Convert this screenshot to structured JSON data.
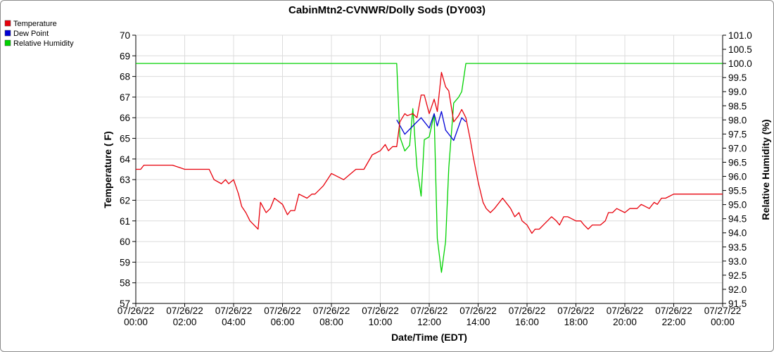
{
  "chart_data": {
    "type": "line",
    "title": "CabinMtn2-CVNWR/Dolly Sods (DY003)",
    "xlabel": "Date/Time (EDT)",
    "ylabel": "Temperature ( F)",
    "y2label": "Relative Humidity (%)",
    "ylim": [
      57,
      70
    ],
    "y2lim": [
      91.5,
      101.0
    ],
    "xlim": [
      0,
      24
    ],
    "grid": true,
    "legend_position": "top-left",
    "x_ticks": [
      {
        "x": 0,
        "line1": "07/26/22",
        "line2": "00:00"
      },
      {
        "x": 2,
        "line1": "07/26/22",
        "line2": "02:00"
      },
      {
        "x": 4,
        "line1": "07/26/22",
        "line2": "04:00"
      },
      {
        "x": 6,
        "line1": "07/26/22",
        "line2": "06:00"
      },
      {
        "x": 8,
        "line1": "07/26/22",
        "line2": "08:00"
      },
      {
        "x": 10,
        "line1": "07/26/22",
        "line2": "10:00"
      },
      {
        "x": 12,
        "line1": "07/26/22",
        "line2": "12:00"
      },
      {
        "x": 14,
        "line1": "07/26/22",
        "line2": "14:00"
      },
      {
        "x": 16,
        "line1": "07/26/22",
        "line2": "16:00"
      },
      {
        "x": 18,
        "line1": "07/26/22",
        "line2": "18:00"
      },
      {
        "x": 20,
        "line1": "07/26/22",
        "line2": "20:00"
      },
      {
        "x": 22,
        "line1": "07/26/22",
        "line2": "22:00"
      },
      {
        "x": 24,
        "line1": "07/27/22",
        "line2": "00:00"
      }
    ],
    "y_ticks": [
      "57",
      "58",
      "59",
      "60",
      "61",
      "62",
      "63",
      "64",
      "65",
      "66",
      "67",
      "68",
      "69",
      "70"
    ],
    "y2_ticks": [
      "91.5",
      "92.0",
      "92.5",
      "93.0",
      "93.5",
      "94.0",
      "94.5",
      "95.0",
      "95.5",
      "96.0",
      "96.5",
      "97.0",
      "97.5",
      "98.0",
      "98.5",
      "99.0",
      "99.5",
      "100.0",
      "100.5",
      "101.0"
    ],
    "series": [
      {
        "name": "Temperature",
        "color": "#e8000b",
        "axis": "left",
        "x": [
          0,
          0.2,
          0.33,
          0.5,
          1,
          1.5,
          2,
          3,
          3.2,
          3.5,
          3.67,
          3.8,
          4,
          4.2,
          4.33,
          4.5,
          4.67,
          5,
          5.1,
          5.33,
          5.5,
          5.67,
          6,
          6.2,
          6.33,
          6.5,
          6.67,
          7,
          7.2,
          7.33,
          7.5,
          7.67,
          8,
          8.5,
          9,
          9.33,
          9.67,
          10,
          10.2,
          10.33,
          10.5,
          10.67,
          10.8,
          11,
          11.1,
          11.33,
          11.5,
          11.67,
          11.8,
          12,
          12.2,
          12.33,
          12.5,
          12.67,
          12.8,
          13,
          13.2,
          13.33,
          13.5,
          13.67,
          13.8,
          14,
          14.2,
          14.33,
          14.5,
          14.67,
          15,
          15.2,
          15.33,
          15.5,
          15.67,
          15.8,
          16,
          16.2,
          16.33,
          16.5,
          16.67,
          17,
          17.2,
          17.33,
          17.5,
          17.67,
          18,
          18.2,
          18.33,
          18.5,
          18.67,
          19,
          19.2,
          19.33,
          19.5,
          19.67,
          20,
          20.2,
          20.33,
          20.5,
          20.67,
          21,
          21.2,
          21.33,
          21.5,
          21.67,
          22,
          22.5,
          23,
          24
        ],
        "values": [
          63.5,
          63.5,
          63.7,
          63.7,
          63.7,
          63.7,
          63.5,
          63.5,
          63.0,
          62.8,
          63.0,
          62.8,
          63.0,
          62.3,
          61.7,
          61.4,
          61.0,
          60.6,
          61.9,
          61.4,
          61.6,
          62.1,
          61.8,
          61.3,
          61.5,
          61.5,
          62.3,
          62.1,
          62.3,
          62.3,
          62.5,
          62.7,
          63.3,
          63.0,
          63.5,
          63.5,
          64.2,
          64.4,
          64.7,
          64.4,
          64.6,
          64.6,
          65.8,
          66.2,
          66.1,
          66.2,
          66.0,
          67.1,
          67.1,
          66.2,
          66.9,
          66.3,
          68.2,
          67.5,
          67.3,
          65.8,
          66.1,
          66.4,
          66.0,
          65.0,
          64.1,
          62.9,
          61.9,
          61.6,
          61.4,
          61.6,
          62.1,
          61.8,
          61.6,
          61.2,
          61.4,
          61.0,
          60.8,
          60.4,
          60.6,
          60.6,
          60.8,
          61.2,
          61.0,
          60.8,
          61.2,
          61.2,
          61.0,
          61.0,
          60.8,
          60.6,
          60.8,
          60.8,
          61.0,
          61.4,
          61.4,
          61.6,
          61.4,
          61.6,
          61.6,
          61.6,
          61.8,
          61.6,
          61.9,
          61.8,
          62.1,
          62.1,
          62.3,
          62.3,
          62.3,
          62.3
        ]
      },
      {
        "name": "Dew Point",
        "color": "#0000d6",
        "axis": "left",
        "x": [
          10.67,
          11.0,
          11.33,
          11.67,
          12.0,
          12.2,
          12.33,
          12.5,
          12.67,
          13.0,
          13.33,
          13.5
        ],
        "values": [
          65.9,
          65.2,
          65.6,
          66.0,
          65.5,
          66.2,
          65.6,
          66.3,
          65.4,
          64.9,
          66.0,
          65.8
        ]
      },
      {
        "name": "Relative Humidity",
        "color": "#00d200",
        "axis": "right",
        "x": [
          0,
          10.67,
          10.8,
          11.0,
          11.2,
          11.33,
          11.5,
          11.67,
          11.8,
          12.0,
          12.2,
          12.33,
          12.5,
          12.67,
          12.8,
          13.0,
          13.2,
          13.33,
          13.5,
          24
        ],
        "values": [
          100.0,
          100.0,
          97.4,
          96.9,
          97.1,
          98.4,
          96.3,
          95.3,
          97.3,
          97.4,
          98.2,
          93.8,
          92.6,
          93.7,
          96.3,
          98.6,
          98.8,
          99.0,
          100.0,
          100.0
        ]
      }
    ]
  }
}
